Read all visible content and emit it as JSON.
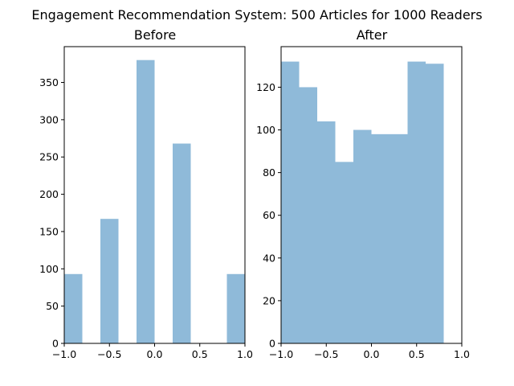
{
  "figure_title": "Engagement Recommendation System: 500 Articles for 1000 Readers",
  "colors": {
    "bar": "#8fbad9",
    "axes": "#000000"
  },
  "chart_data": [
    {
      "type": "bar",
      "subtitle": "Before",
      "bin_edges": [
        -1.0,
        -0.8,
        -0.6,
        -0.4,
        -0.2,
        0.0,
        0.2,
        0.4,
        0.6,
        0.8,
        1.0
      ],
      "values": [
        93,
        0,
        167,
        0,
        380,
        0,
        268,
        0,
        0,
        93
      ],
      "xlim": [
        -1.0,
        1.0
      ],
      "ylim": [
        0,
        398
      ],
      "xticks": [
        -1.0,
        -0.5,
        0.0,
        0.5,
        1.0
      ],
      "xtick_labels": [
        "−1.0",
        "−0.5",
        "0.0",
        "0.5",
        "1.0"
      ],
      "yticks": [
        0,
        50,
        100,
        150,
        200,
        250,
        300,
        350
      ],
      "ytick_labels": [
        "0",
        "50",
        "100",
        "150",
        "200",
        "250",
        "300",
        "350"
      ],
      "grid": false,
      "legend": "none"
    },
    {
      "type": "bar",
      "subtitle": "After",
      "bin_edges": [
        -1.0,
        -0.8,
        -0.6,
        -0.4,
        -0.2,
        0.0,
        0.2,
        0.4,
        0.6,
        0.8,
        1.0
      ],
      "values": [
        132,
        120,
        104,
        85,
        100,
        98,
        98,
        132,
        131,
        0
      ],
      "xlim": [
        -1.0,
        1.0
      ],
      "ylim": [
        0,
        139
      ],
      "xticks": [
        -1.0,
        -0.5,
        0.0,
        0.5,
        1.0
      ],
      "xtick_labels": [
        "−1.0",
        "−0.5",
        "0.0",
        "0.5",
        "1.0"
      ],
      "yticks": [
        0,
        20,
        40,
        60,
        80,
        100,
        120
      ],
      "ytick_labels": [
        "0",
        "20",
        "40",
        "60",
        "80",
        "100",
        "120"
      ],
      "grid": false,
      "legend": "none"
    }
  ]
}
